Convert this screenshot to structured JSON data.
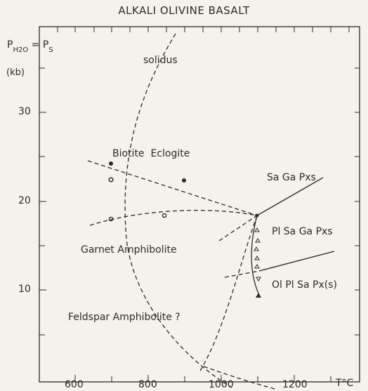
{
  "title": "ALKALI OLIVINE BASALT",
  "y_axis_label": {
    "p": "P",
    "h2o": "H2O",
    "eq": " = P",
    "s": "S",
    "unit": "(kb)"
  },
  "x_axis_unit": "T°C",
  "chart_data": {
    "type": "phase-diagram",
    "title": "ALKALI OLIVINE BASALT",
    "xlabel": "T°C",
    "ylabel": "PH2O = PS (kb)",
    "x_ticks": [
      600,
      800,
      1000,
      1200
    ],
    "y_ticks": [
      10,
      20,
      30
    ],
    "xlim": [
      560,
      1320
    ],
    "ylim": [
      0,
      42
    ]
  },
  "field_labels": {
    "solidus": "solidus",
    "biotite_eclogite": "Biotite  Eclogite",
    "garnet_amphibolite": "Garnet Amphibolite",
    "feldspar_amphibolite": "Feldspar Amphibolite ?",
    "sa_ga_pxs": "Sa Ga Pxs",
    "pl_sa_ga_pxs": "Pl Sa Ga Pxs",
    "ol_pl_sa_px": "Ol Pl Sa Px(s)"
  },
  "tick_labels": {
    "x600": "600",
    "x800": "800",
    "x1000": "1000",
    "x1200": "1200",
    "y10": "10",
    "y20": "20",
    "y30": "30"
  }
}
